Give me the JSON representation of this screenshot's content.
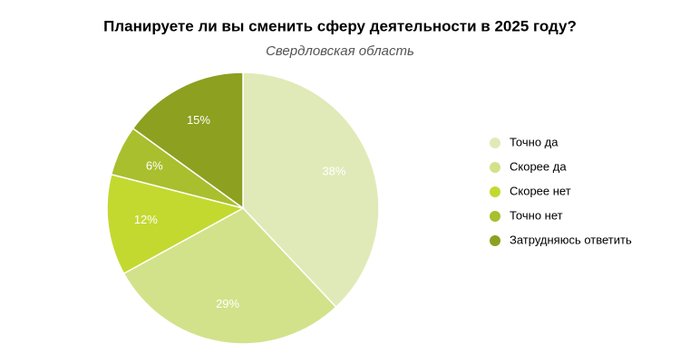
{
  "chart_data": {
    "type": "pie",
    "title": "Планируете ли вы сменить сферу деятельности в 2025 году?",
    "subtitle": "Свердловская область",
    "categories": [
      "Точно да",
      "Скорее да",
      "Скорее нет",
      "Точно нет",
      "Затрудняюсь ответить"
    ],
    "values": [
      38,
      29,
      12,
      6,
      15
    ],
    "value_labels": [
      "38%",
      "29%",
      "12%",
      "6%",
      "15%"
    ],
    "colors": [
      "#e0eab8",
      "#d2e28a",
      "#c3d930",
      "#a9bf2e",
      "#8da020"
    ],
    "legend": "right"
  }
}
